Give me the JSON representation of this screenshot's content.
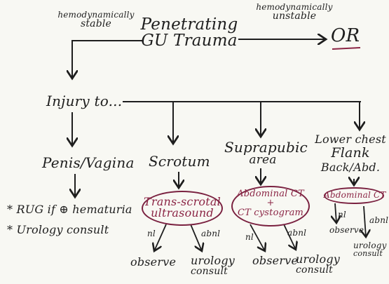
{
  "diagram": {
    "root": {
      "line1": "Penetrating",
      "line2": "GU Trauma"
    },
    "left_edge_label": {
      "line1": "hemodynamically",
      "line2": "stable"
    },
    "right_edge_label": {
      "line1": "hemodynamically",
      "line2": "unstable"
    },
    "unstable_destination": "OR",
    "branch_header": "Injury to...",
    "branches": [
      {
        "title": "Penis/Vagina",
        "bullets": [
          "* RUG if ⊕ hematuria",
          "* Urology consult"
        ]
      },
      {
        "title": "Scrotum",
        "test": {
          "line1": "Trans-scrotal",
          "line2": "ultrasound"
        },
        "outcomes": [
          {
            "edge": "nl",
            "result": "observe"
          },
          {
            "edge": "abnl",
            "result_line1": "urology",
            "result_line2": "consult"
          }
        ]
      },
      {
        "title": {
          "line1": "Suprapubic",
          "line2": "area"
        },
        "test": {
          "line1": "Abdominal CT",
          "plus": "+",
          "line2": "CT cystogram"
        },
        "outcomes": [
          {
            "edge": "nl",
            "result": "observe"
          },
          {
            "edge": "abnl",
            "result_line1": "urology",
            "result_line2": "consult"
          }
        ]
      },
      {
        "title": {
          "line1": "Lower chest",
          "line2": "Flank",
          "line3": "Back/Abd."
        },
        "test": {
          "line1": "Abdominal CT"
        },
        "outcomes": [
          {
            "edge": "nl",
            "result": "observe"
          },
          {
            "edge": "abnl",
            "result_line1": "urology",
            "result_line2": "consult"
          }
        ]
      }
    ]
  },
  "colors": {
    "ink": "#1e1e1e",
    "highlight": "#8b2545",
    "background": "#f8f8f3"
  }
}
